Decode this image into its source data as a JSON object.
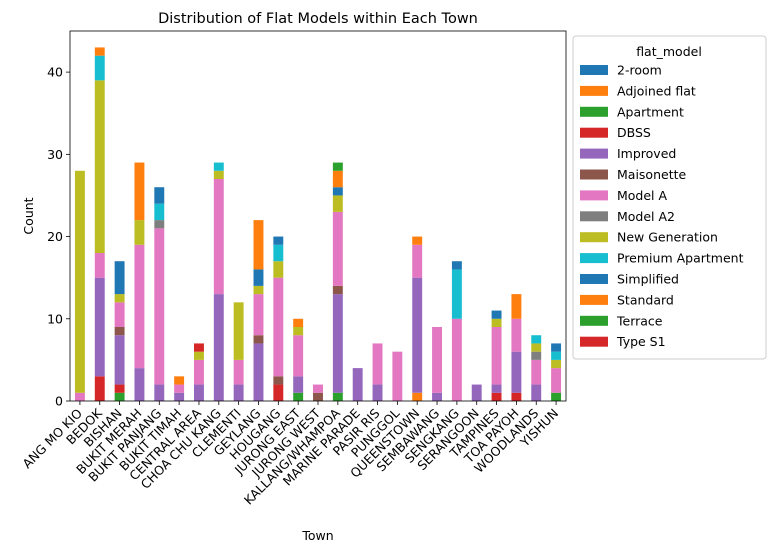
{
  "chart_data": {
    "type": "bar",
    "stacked": true,
    "title": "Distribution of Flat Models within Each Town",
    "xlabel": "Town",
    "ylabel": "Count",
    "ylim": [
      0,
      45
    ],
    "yticks": [
      0,
      10,
      20,
      30,
      40
    ],
    "grid": false,
    "legend_title": "flat_model",
    "legend_placement": "outside-right",
    "categories": [
      "ANG MO KIO",
      "BEDOK",
      "BISHAN",
      "BUKIT MERAH",
      "BUKIT PANJANG",
      "BUKIT TIMAH",
      "CENTRAL AREA",
      "CHOA CHU KANG",
      "CLEMENTI",
      "GEYLANG",
      "HOUGANG",
      "JURONG EAST",
      "JURONG WEST",
      "KALLANG/WHAMPOA",
      "MARINE PARADE",
      "PASIR RIS",
      "PUNGGOL",
      "QUEENSTOWN",
      "SEMBAWANG",
      "SENGKANG",
      "SERANGOON",
      "TAMPINES",
      "TOA PAYOH",
      "WOODLANDS",
      "YISHUN"
    ],
    "series": [
      {
        "name": "2-room",
        "color": "#1f77b4",
        "values": [
          0,
          0,
          0,
          0,
          0,
          0,
          0,
          0,
          0,
          0,
          0,
          0,
          0,
          0,
          0,
          0,
          0,
          0,
          0,
          0,
          0,
          0,
          0,
          0,
          0
        ]
      },
      {
        "name": "Adjoined flat",
        "color": "#ff7f0e",
        "values": [
          0,
          0,
          0,
          0,
          0,
          0,
          0,
          0,
          0,
          0,
          0,
          0,
          0,
          0,
          0,
          0,
          0,
          1,
          0,
          0,
          0,
          0,
          0,
          0,
          0
        ]
      },
      {
        "name": "Apartment",
        "color": "#2ca02c",
        "values": [
          0,
          0,
          1,
          0,
          0,
          0,
          0,
          0,
          0,
          0,
          0,
          1,
          0,
          1,
          0,
          0,
          0,
          0,
          0,
          0,
          0,
          0,
          0,
          0,
          1
        ]
      },
      {
        "name": "DBSS",
        "color": "#d62728",
        "values": [
          0,
          3,
          1,
          0,
          0,
          0,
          0,
          0,
          0,
          0,
          2,
          0,
          0,
          0,
          0,
          0,
          0,
          0,
          0,
          0,
          0,
          1,
          1,
          0,
          0
        ]
      },
      {
        "name": "Improved",
        "color": "#9467bd",
        "values": [
          0,
          12,
          6,
          4,
          2,
          1,
          2,
          13,
          2,
          7,
          0,
          2,
          0,
          12,
          4,
          2,
          0,
          14,
          1,
          0,
          2,
          1,
          5,
          2,
          0
        ]
      },
      {
        "name": "Maisonette",
        "color": "#8c564b",
        "values": [
          0,
          0,
          1,
          0,
          0,
          0,
          0,
          0,
          0,
          1,
          1,
          0,
          1,
          1,
          0,
          0,
          0,
          0,
          0,
          0,
          0,
          0,
          0,
          0,
          0
        ]
      },
      {
        "name": "Model A",
        "color": "#e377c2",
        "values": [
          1,
          3,
          3,
          15,
          19,
          1,
          3,
          14,
          3,
          5,
          12,
          5,
          1,
          9,
          0,
          5,
          6,
          4,
          8,
          10,
          0,
          7,
          4,
          3,
          3
        ]
      },
      {
        "name": "Model A2",
        "color": "#7f7f7f",
        "values": [
          0,
          0,
          0,
          0,
          1,
          0,
          0,
          0,
          0,
          0,
          0,
          0,
          0,
          0,
          0,
          0,
          0,
          0,
          0,
          0,
          0,
          0,
          0,
          1,
          0
        ]
      },
      {
        "name": "New Generation",
        "color": "#bcbd22",
        "values": [
          27,
          21,
          1,
          3,
          0,
          0,
          1,
          1,
          7,
          1,
          2,
          1,
          0,
          2,
          0,
          0,
          0,
          0,
          0,
          0,
          0,
          1,
          0,
          1,
          1
        ]
      },
      {
        "name": "Premium Apartment",
        "color": "#17becf",
        "values": [
          0,
          3,
          0,
          0,
          2,
          0,
          0,
          1,
          0,
          0,
          2,
          0,
          0,
          0,
          0,
          0,
          0,
          0,
          0,
          6,
          0,
          0,
          0,
          1,
          1
        ]
      },
      {
        "name": "Simplified",
        "color": "#1f77b4",
        "values": [
          0,
          0,
          4,
          0,
          2,
          0,
          0,
          0,
          0,
          2,
          1,
          0,
          0,
          1,
          0,
          0,
          0,
          0,
          0,
          1,
          0,
          1,
          0,
          0,
          1
        ]
      },
      {
        "name": "Standard",
        "color": "#ff7f0e",
        "values": [
          0,
          1,
          0,
          7,
          0,
          1,
          0,
          0,
          0,
          6,
          0,
          1,
          0,
          2,
          0,
          0,
          0,
          1,
          0,
          0,
          0,
          0,
          3,
          0,
          0
        ]
      },
      {
        "name": "Terrace",
        "color": "#2ca02c",
        "values": [
          0,
          0,
          0,
          0,
          0,
          0,
          0,
          0,
          0,
          0,
          0,
          0,
          0,
          1,
          0,
          0,
          0,
          0,
          0,
          0,
          0,
          0,
          0,
          0,
          0
        ]
      },
      {
        "name": "Type S1",
        "color": "#d62728",
        "values": [
          0,
          0,
          0,
          0,
          0,
          0,
          1,
          0,
          0,
          0,
          0,
          0,
          0,
          0,
          0,
          0,
          0,
          0,
          0,
          0,
          0,
          0,
          0,
          0,
          0
        ]
      }
    ]
  }
}
